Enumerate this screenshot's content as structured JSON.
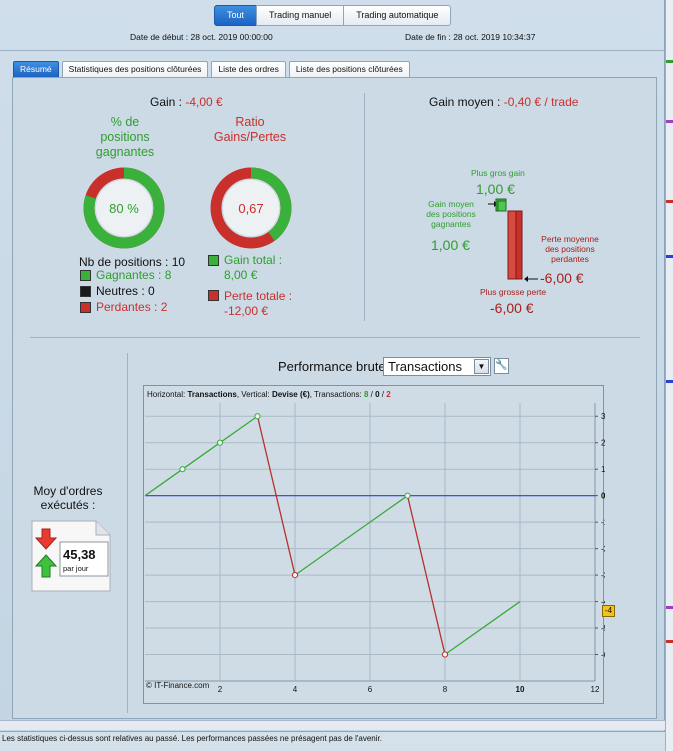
{
  "modes": [
    {
      "label": "Tout",
      "active": true
    },
    {
      "label": "Trading manuel",
      "active": false
    },
    {
      "label": "Trading automatique",
      "active": false
    }
  ],
  "dates": {
    "start": "Date de début :  28 oct. 2019 00:00:00",
    "end": "Date de fin :  28 oct. 2019 10:34:37"
  },
  "tabs": [
    {
      "label": "Résumé",
      "active": true
    },
    {
      "label": "Statistiques des positions clôturées",
      "active": false
    },
    {
      "label": "Liste des ordres",
      "active": false
    },
    {
      "label": "Liste des positions clôturées",
      "active": false
    }
  ],
  "summary": {
    "gain_label": "Gain : ",
    "gain_value": "-4,00 €",
    "win_pct_title_1": "% de",
    "win_pct_title_2": "positions",
    "win_pct_title_3": "gagnantes",
    "win_pct_value": "80 %",
    "win_pct_fraction": 0.8,
    "ratio_title_1": "Ratio",
    "ratio_title_2": "Gains/Pertes",
    "ratio_value": "0,67",
    "ratio_fraction": 0.4,
    "nb_positions": "Nb de positions : 10",
    "gagnantes": "Gagnantes : 8",
    "neutres": "Neutres : 0",
    "perdantes": "Perdantes : 2",
    "gain_total_label": "Gain total :",
    "gain_total_value": "8,00 €",
    "perte_totale_label": "Perte totale :",
    "perte_totale_value": "-12,00 €"
  },
  "avg": {
    "gain_moyen_label": "Gain moyen : ",
    "gain_moyen_value": "-0,40 € / trade",
    "plus_gros_gain_label": "Plus gros gain",
    "plus_gros_gain_value": "1,00 €",
    "gain_moyen_pos_1": "Gain moyen",
    "gain_moyen_pos_2": "des positions",
    "gain_moyen_pos_3": "gagnantes",
    "gain_moyen_pos_value": "1,00 €",
    "perte_moyenne_1": "Perte moyenne",
    "perte_moyenne_2": "des positions",
    "perte_moyenne_3": "perdantes",
    "perte_moyenne_value": "-6,00 €",
    "plus_grosse_perte_label": "Plus grosse perte",
    "plus_grosse_perte_value": "-6,00 €"
  },
  "orders": {
    "label_1": "Moy d'ordres",
    "label_2": "exécutés :",
    "value": "45,38",
    "unit": "par jour"
  },
  "performance": {
    "title": "Performance brute",
    "select_value": "Transactions",
    "header_h": "Horizontal: ",
    "header_h_val": "Transactions",
    "header_v": ", Vertical: ",
    "header_v_val": "Devise (€)",
    "header_t": ", Transactions: ",
    "header_win": "8",
    "header_sep1": " / ",
    "header_neutral": "0",
    "header_sep2": " / ",
    "header_loss": "2",
    "credit": "© IT-Finance.com",
    "last_value_badge": "-4"
  },
  "chart_data": {
    "type": "line",
    "x": [
      0,
      1,
      2,
      3,
      4,
      5,
      6,
      7,
      8,
      9,
      10
    ],
    "y": [
      0,
      1,
      2,
      3,
      -3,
      -2,
      -1,
      0,
      -6,
      -5,
      -4
    ],
    "winning_segments": [
      [
        0,
        1
      ],
      [
        1,
        2
      ],
      [
        2,
        3
      ],
      [
        4,
        5
      ],
      [
        5,
        6
      ],
      [
        6,
        7
      ],
      [
        8,
        9
      ],
      [
        9,
        10
      ]
    ],
    "losing_segments": [
      [
        3,
        4
      ],
      [
        7,
        8
      ]
    ],
    "markers": [
      {
        "x": 1,
        "y": 1,
        "kind": "win"
      },
      {
        "x": 2,
        "y": 2,
        "kind": "win"
      },
      {
        "x": 3,
        "y": 3,
        "kind": "win"
      },
      {
        "x": 4,
        "y": -3,
        "kind": "loss"
      },
      {
        "x": 7,
        "y": 0,
        "kind": "win"
      },
      {
        "x": 8,
        "y": -6,
        "kind": "loss"
      }
    ],
    "xlim": [
      0,
      12
    ],
    "ylim": [
      -7,
      3.5
    ],
    "x_ticks": [
      "2",
      "4",
      "6",
      "8",
      "10",
      "12"
    ],
    "x_tick_values": [
      2,
      4,
      6,
      8,
      10,
      12
    ],
    "y_ticks": [
      "3",
      "2",
      "1",
      "0",
      "-1",
      "-2",
      "-3",
      "-4",
      "-5",
      "-6"
    ],
    "y_tick_values": [
      3,
      2,
      1,
      0,
      -1,
      -2,
      -3,
      -4,
      -5,
      -6
    ],
    "zero_line": true,
    "grid": true,
    "colors": {
      "win": "#3aaa3a",
      "loss": "#b8302a",
      "zero": "#2a3fd8",
      "grid": "#a9b9c6"
    }
  },
  "footer": "Les statistiques ci-dessus sont relatives au passé. Les performances passées ne présagent pas de l'avenir.",
  "colors": {
    "accent": "#1c63c4",
    "green": "#2e9e2e",
    "red": "#c9302c"
  }
}
